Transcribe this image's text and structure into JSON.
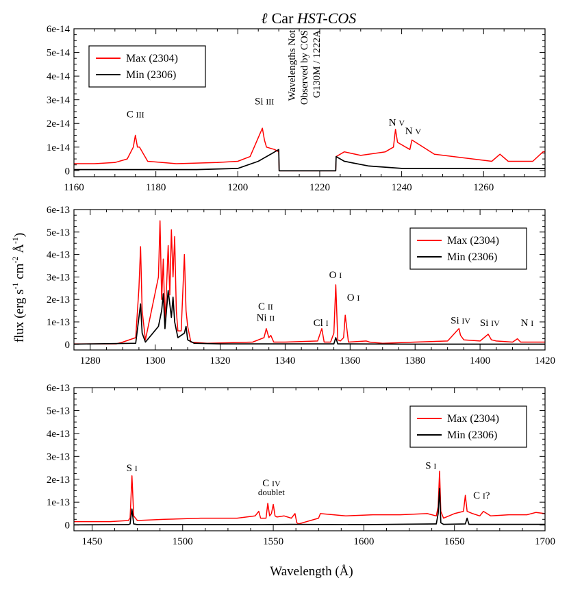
{
  "figure": {
    "title_symbol": "ℓ",
    "title_text": " Car ",
    "title_italic": "HST-COS",
    "xlabel": "Wavelength (Å)",
    "ylabel_text": "flux (erg s",
    "ylabel_sup1": "-1",
    "ylabel_mid": " cm",
    "ylabel_sup2": "-2",
    "ylabel_mid2": " Å",
    "ylabel_sup3": "-1",
    "ylabel_end": ")",
    "colors": {
      "max": "#ff0000",
      "min": "#000000"
    }
  },
  "chart_data": [
    {
      "type": "line",
      "xlim": [
        1160,
        1275
      ],
      "ylim": [
        -2.5e-15,
        6e-14
      ],
      "xticks": [
        1160,
        1180,
        1200,
        1220,
        1240,
        1260
      ],
      "yticks": [
        0,
        1e-14,
        2e-14,
        3e-14,
        4e-14,
        5e-14,
        6e-14
      ],
      "ytick_labels": [
        "0",
        "1e-14",
        "2e-14",
        "3e-14",
        "4e-14",
        "5e-14",
        "6e-14"
      ],
      "legend_position": "top-left",
      "series": [
        {
          "name": "Max (2304)",
          "color": "#ff0000",
          "x": [
            1160,
            1165,
            1170,
            1173,
            1174.5,
            1175,
            1175.5,
            1176,
            1178,
            1185,
            1195,
            1200,
            1203,
            1205.5,
            1206,
            1206.5,
            1207,
            1209,
            1210,
            1210.1,
            1223.9,
            1224,
            1226,
            1230,
            1236,
            1238,
            1238.5,
            1239,
            1242,
            1242.5,
            1248,
            1255,
            1262,
            1264,
            1266,
            1272,
            1274.5,
            1275
          ],
          "y": [
            3e-15,
            3e-15,
            3.5e-15,
            5e-15,
            1e-14,
            1.5e-14,
            1e-14,
            1e-14,
            4e-15,
            3e-15,
            3.5e-15,
            4e-15,
            6e-15,
            1.6e-14,
            1.8e-14,
            1.3e-14,
            1e-14,
            9e-15,
            8e-15,
            0,
            0,
            6e-15,
            8e-15,
            6.5e-15,
            8e-15,
            1e-14,
            1.75e-14,
            1.2e-14,
            9e-15,
            1.3e-14,
            7e-15,
            5.5e-15,
            4e-15,
            7e-15,
            4e-15,
            4e-15,
            8e-15,
            8e-15
          ]
        },
        {
          "name": "Min (2306)",
          "color": "#000000",
          "x": [
            1160,
            1170,
            1180,
            1190,
            1200,
            1205,
            1208,
            1210,
            1210.1,
            1223.9,
            1224,
            1226,
            1232,
            1240,
            1250,
            1260,
            1270,
            1275
          ],
          "y": [
            5e-16,
            5e-16,
            5e-16,
            5e-16,
            1e-15,
            4e-15,
            7e-15,
            9e-15,
            0,
            0,
            6e-15,
            4e-15,
            2e-15,
            1e-15,
            1e-15,
            1e-15,
            1e-15,
            1e-15
          ]
        }
      ],
      "annotations": [
        {
          "label": "C",
          "ion": "III",
          "x": 1175,
          "y": 2.25e-14
        },
        {
          "label": "Si",
          "ion": "III",
          "x": 1206.5,
          "y": 2.8e-14
        },
        {
          "label": "N",
          "ion": "V",
          "x": 1238.8,
          "y": 1.9e-14
        },
        {
          "label": "N",
          "ion": "V",
          "x": 1242.8,
          "y": 1.55e-14
        }
      ],
      "gap_note": [
        "Wavelengths Not",
        "Observed by COS",
        "G130M / 1222A"
      ]
    },
    {
      "type": "line",
      "xlim": [
        1275,
        1420
      ],
      "ylim": [
        -2.5e-14,
        6e-13
      ],
      "xticks": [
        1280,
        1300,
        1320,
        1340,
        1360,
        1380,
        1400,
        1420
      ],
      "yticks": [
        0,
        1e-13,
        2e-13,
        3e-13,
        4e-13,
        5e-13,
        6e-13
      ],
      "ytick_labels": [
        "0",
        "1e-13",
        "2e-13",
        "3e-13",
        "4e-13",
        "5e-13",
        "6e-13"
      ],
      "legend_position": "top-right",
      "series": [
        {
          "name": "Max (2304)",
          "color": "#ff0000",
          "x": [
            1275,
            1288,
            1290,
            1294,
            1295,
            1295.5,
            1296,
            1297,
            1301,
            1301.5,
            1302,
            1302.5,
            1303,
            1303.5,
            1304,
            1304.5,
            1305,
            1305.5,
            1306,
            1306.5,
            1307,
            1308,
            1309,
            1309.5,
            1310,
            1311,
            1316,
            1330,
            1333.5,
            1334.2,
            1335,
            1335.6,
            1336.5,
            1340,
            1350,
            1351.3,
            1352,
            1354,
            1355,
            1355.6,
            1356.2,
            1357,
            1358,
            1358.5,
            1359.5,
            1365,
            1366,
            1370,
            1380,
            1390,
            1393.5,
            1394,
            1395,
            1400,
            1402.5,
            1403.5,
            1405,
            1410,
            1411.5,
            1412.5,
            1420
          ],
          "y": [
            2e-15,
            2e-15,
            1e-14,
            3e-14,
            2.5e-13,
            4.35e-13,
            1.5e-13,
            2e-14,
            3e-13,
            5.5e-13,
            2e-13,
            3.8e-13,
            1e-13,
            2.5e-13,
            4.4e-13,
            2.2e-13,
            5.1e-13,
            3e-13,
            4.8e-13,
            1.5e-13,
            6e-14,
            6e-14,
            4e-13,
            1.5e-13,
            8e-14,
            1e-14,
            5e-15,
            1e-14,
            3e-14,
            7e-14,
            3e-14,
            4e-14,
            1e-14,
            1e-14,
            1.5e-14,
            7e-14,
            1e-14,
            1e-14,
            5e-14,
            2.65e-13,
            2e-14,
            1.5e-14,
            3e-14,
            1.3e-13,
            1e-14,
            1.5e-14,
            1e-14,
            5e-15,
            1e-14,
            1.5e-14,
            7e-14,
            4e-14,
            2e-14,
            1.5e-14,
            4.5e-14,
            2e-14,
            1.5e-14,
            1e-14,
            2.5e-14,
            1e-14,
            1e-14
          ]
        },
        {
          "name": "Min (2306)",
          "color": "#000000",
          "x": [
            1275,
            1294,
            1295,
            1295.5,
            1296,
            1297,
            1301,
            1302,
            1302.5,
            1303,
            1304,
            1305,
            1305.5,
            1306,
            1307,
            1309,
            1309.5,
            1310,
            1312,
            1320,
            1355,
            1355.6,
            1356.2,
            1380,
            1420
          ],
          "y": [
            1e-15,
            5e-15,
            1.2e-13,
            1.8e-13,
            5e-14,
            1e-14,
            8e-14,
            1.5e-13,
            2.25e-13,
            7e-14,
            2.4e-13,
            1.2e-13,
            2.1e-13,
            1e-13,
            3e-14,
            5e-14,
            8e-14,
            2e-14,
            5e-15,
            2e-15,
            2e-15,
            3e-14,
            2e-15,
            1e-15,
            1e-15
          ]
        }
      ],
      "annotations": [
        {
          "label": "C",
          "ion": "II",
          "x": 1334,
          "y": 1.55e-13
        },
        {
          "label": "Ni",
          "ion": "II",
          "x": 1334,
          "y": 1.05e-13
        },
        {
          "label": "Cl",
          "ion": "I",
          "x": 1351,
          "y": 8.2e-14
        },
        {
          "label": "O",
          "ion": "I",
          "x": 1355.5,
          "y": 2.95e-13
        },
        {
          "label": "O",
          "ion": "I",
          "x": 1361,
          "y": 1.95e-13
        },
        {
          "label": "Si",
          "ion": "IV",
          "x": 1394,
          "y": 9.2e-14
        },
        {
          "label": "Si",
          "ion": "IV",
          "x": 1403,
          "y": 8.2e-14
        },
        {
          "label": "N",
          "ion": "I",
          "x": 1414.5,
          "y": 8.2e-14
        }
      ]
    },
    {
      "type": "line",
      "xlim": [
        1440,
        1700
      ],
      "ylim": [
        -2.5e-14,
        6e-13
      ],
      "xticks": [
        1450,
        1500,
        1550,
        1600,
        1650,
        1700
      ],
      "yticks": [
        0,
        1e-13,
        2e-13,
        3e-13,
        4e-13,
        5e-13,
        6e-13
      ],
      "ytick_labels": [
        "0",
        "1e-13",
        "2e-13",
        "3e-13",
        "4e-13",
        "5e-13",
        "6e-13"
      ],
      "legend_position": "top-right",
      "series": [
        {
          "name": "Max (2304)",
          "color": "#ff0000",
          "x": [
            1440,
            1460,
            1470,
            1471,
            1472,
            1473,
            1475,
            1490,
            1510,
            1530,
            1540,
            1542,
            1543,
            1546,
            1547,
            1548,
            1549,
            1550,
            1551,
            1552,
            1556,
            1560,
            1562,
            1563,
            1564,
            1575,
            1576,
            1590,
            1605,
            1620,
            1635,
            1640,
            1641,
            1641.8,
            1642.5,
            1644,
            1650,
            1655,
            1656,
            1657,
            1660,
            1664,
            1666,
            1670,
            1680,
            1690,
            1695,
            1700
          ],
          "y": [
            1.5e-14,
            1.5e-14,
            2e-14,
            3e-14,
            2.15e-13,
            4e-14,
            2e-14,
            2.5e-14,
            3e-14,
            3e-14,
            4e-14,
            6e-14,
            3e-14,
            3e-14,
            9.5e-14,
            4e-14,
            5e-14,
            9e-14,
            4e-14,
            3.5e-14,
            4e-14,
            3e-14,
            5e-14,
            1e-14,
            5e-15,
            3e-14,
            5e-14,
            4e-14,
            4.5e-14,
            4.5e-14,
            5e-14,
            4e-14,
            8e-14,
            2.35e-13,
            6e-14,
            3e-14,
            5e-14,
            6e-14,
            1.3e-13,
            6e-14,
            5e-14,
            4e-14,
            6e-14,
            4e-14,
            4.5e-14,
            4.5e-14,
            5.5e-14,
            5e-14
          ]
        },
        {
          "name": "Min (2306)",
          "color": "#000000",
          "x": [
            1440,
            1470,
            1471,
            1472,
            1473,
            1475,
            1540,
            1560,
            1600,
            1640,
            1641,
            1641.8,
            1642.5,
            1644,
            1656,
            1657,
            1658,
            1700
          ],
          "y": [
            1e-15,
            2e-15,
            5e-15,
            7e-14,
            5e-15,
            2e-15,
            2e-15,
            3e-15,
            2e-15,
            5e-15,
            5e-14,
            1.6e-13,
            1e-14,
            3e-15,
            5e-15,
            3e-14,
            3e-15,
            3e-15
          ]
        }
      ],
      "annotations": [
        {
          "label": "S",
          "ion": "I",
          "x": 1472,
          "y": 2.35e-13
        },
        {
          "label": "C",
          "ion": "IV",
          "x": 1549,
          "y": 1.7e-13
        },
        {
          "label": "S",
          "ion": "I",
          "x": 1637,
          "y": 2.45e-13
        },
        {
          "label": "C",
          "ion": "I",
          "suffix": "?",
          "x": 1665,
          "y": 1.15e-13
        }
      ],
      "notes": [
        {
          "text": "doublet",
          "x": 1549,
          "y": 1.3e-13
        }
      ]
    }
  ]
}
